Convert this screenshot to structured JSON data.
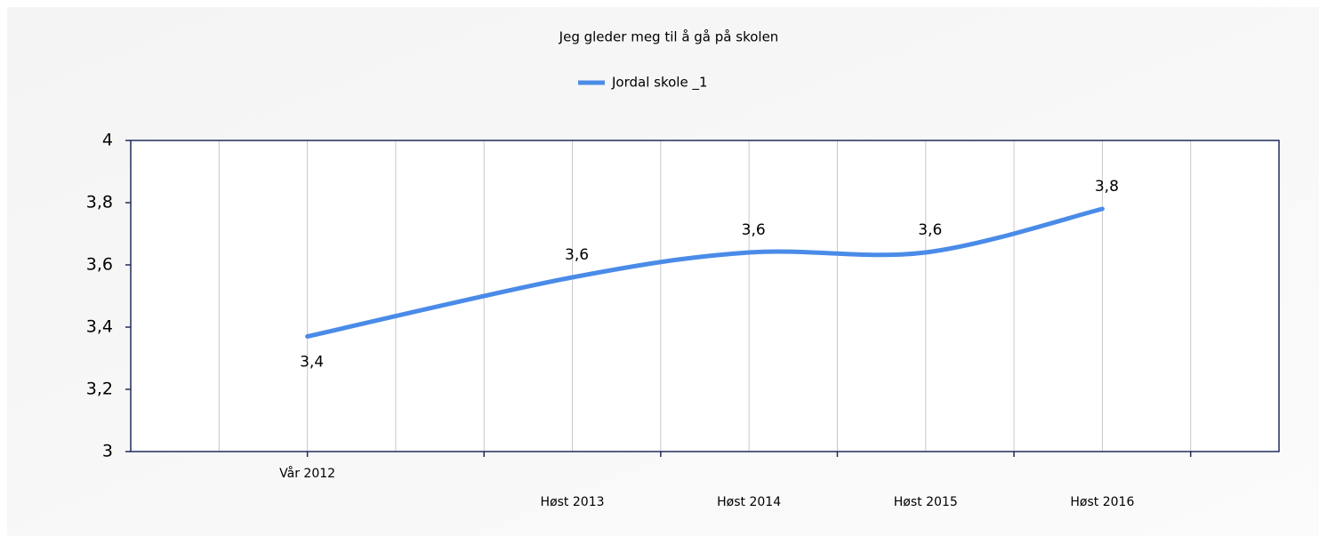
{
  "chart_data": {
    "type": "line",
    "title": "Jeg gleder meg til å gå på skolen",
    "x": [
      2012.0,
      2013.5,
      2014.5,
      2015.5,
      2016.5
    ],
    "series": [
      {
        "name": "Jordal skole _1",
        "color": "#4a8be8",
        "values": [
          3.37,
          3.56,
          3.64,
          3.64,
          3.78
        ],
        "value_labels": [
          "3,4",
          "3,6",
          "3,6",
          "3,6",
          "3,8"
        ]
      }
    ],
    "xlim": [
      2011.0,
      2017.5
    ],
    "xticks": [
      {
        "value": 2012.0,
        "label": "Vår 2012"
      },
      {
        "value": 2013.5,
        "label": "Høst 2013"
      },
      {
        "value": 2014.5,
        "label": "Høst 2014"
      },
      {
        "value": 2015.5,
        "label": "Høst 2015"
      },
      {
        "value": 2016.5,
        "label": "Høst 2016"
      }
    ],
    "xgrid": [
      2011.5,
      2012.0,
      2012.5,
      2013.0,
      2013.5,
      2014.0,
      2014.5,
      2015.0,
      2015.5,
      2016.0,
      2016.5,
      2017.0
    ],
    "xminorticks": [
      2012.0,
      2013.0,
      2014.0,
      2015.0,
      2016.0,
      2017.0
    ],
    "ylim": [
      3,
      4
    ],
    "yticks": [
      3,
      {
        "value": 3.2,
        "label": "3,2"
      },
      {
        "value": 3.4,
        "label": "3,4"
      },
      {
        "value": 3.6,
        "label": "3,6"
      },
      {
        "value": 3.8,
        "label": "3,8"
      },
      4
    ],
    "grid": true,
    "legend": "top"
  }
}
